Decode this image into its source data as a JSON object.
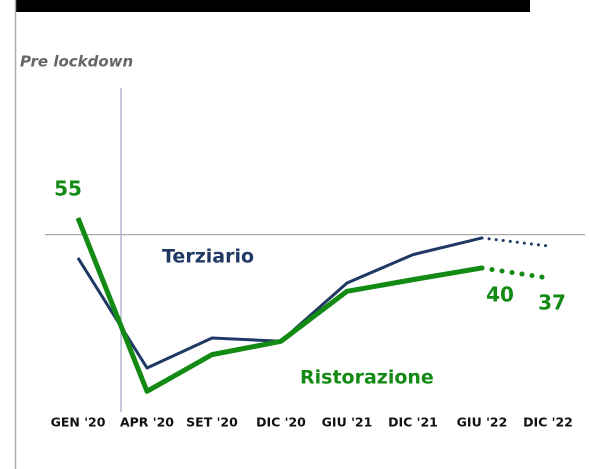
{
  "chart_data": {
    "type": "line",
    "categories": [
      "GEN '20",
      "APR '20",
      "SET '20",
      "DIC '20",
      "GIU '21",
      "DIC '21",
      "GIU '22",
      "DIC '22"
    ],
    "series": [
      {
        "name": "Terziario",
        "color": "#1f3864",
        "values": [
          43,
          10,
          19,
          18,
          35.5,
          44,
          49,
          46.6
        ]
      },
      {
        "name": "Ristorazione",
        "color": "#138a13",
        "values": [
          55,
          3,
          14,
          18,
          33,
          36.5,
          40,
          37
        ]
      }
    ],
    "value_labels": [
      {
        "series": 1,
        "index": 0
      },
      {
        "series": 1,
        "index": 6
      },
      {
        "series": 1,
        "index": 7
      }
    ],
    "forecast_start_index": 6,
    "reference": {
      "label": "Pre lockdown",
      "value": 50
    },
    "ylim": [
      0,
      60
    ]
  }
}
